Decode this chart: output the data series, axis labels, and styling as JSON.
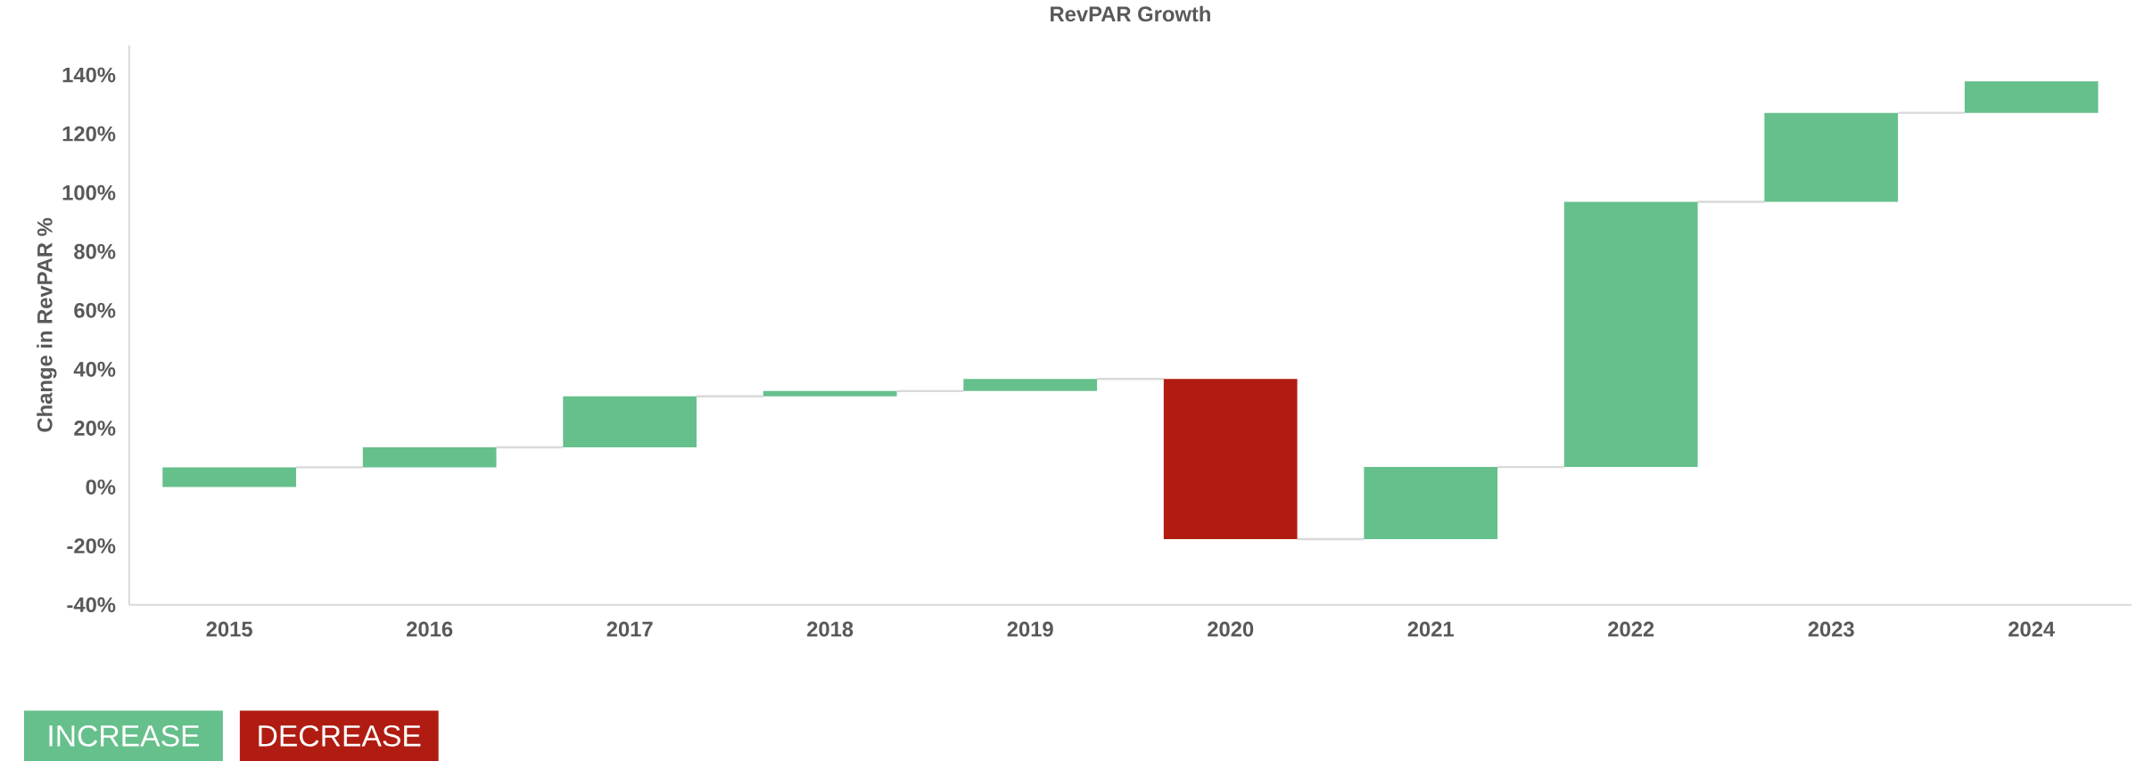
{
  "chart_data": {
    "type": "bar",
    "title": "RevPAR Growth",
    "ylabel": "Change in RevPAR %",
    "categories": [
      "2015",
      "2016",
      "2017",
      "2018",
      "2019",
      "2020",
      "2021",
      "2022",
      "2023",
      "2024"
    ],
    "series": [
      {
        "name": "INCREASE",
        "color": "#66c08c",
        "base": [
          0,
          6.7,
          13.5,
          30.8,
          32.6,
          null,
          -17.7,
          6.8,
          96.9,
          127.1
        ],
        "values": [
          6.7,
          6.8,
          17.3,
          1.8,
          4.1,
          null,
          24.5,
          90.1,
          30.2,
          10.7
        ]
      },
      {
        "name": "DECREASE",
        "color": "#b01c12",
        "base": [
          null,
          null,
          null,
          null,
          null,
          36.7,
          null,
          null,
          null,
          null
        ],
        "values": [
          null,
          null,
          null,
          null,
          null,
          -54.4,
          null,
          null,
          null,
          null
        ]
      }
    ],
    "ylim": [
      -40,
      150
    ],
    "yticks": [
      {
        "value": -40,
        "label": "-40%"
      },
      {
        "value": -20,
        "label": "-20%"
      },
      {
        "value": 0,
        "label": "0%"
      },
      {
        "value": 20,
        "label": "20%"
      },
      {
        "value": 40,
        "label": "40%"
      },
      {
        "value": 60,
        "label": "60%"
      },
      {
        "value": 80,
        "label": "80%"
      },
      {
        "value": 100,
        "label": "100%"
      },
      {
        "value": 120,
        "label": "120%"
      },
      {
        "value": 140,
        "label": "140%"
      }
    ],
    "legend": "bottom left"
  }
}
